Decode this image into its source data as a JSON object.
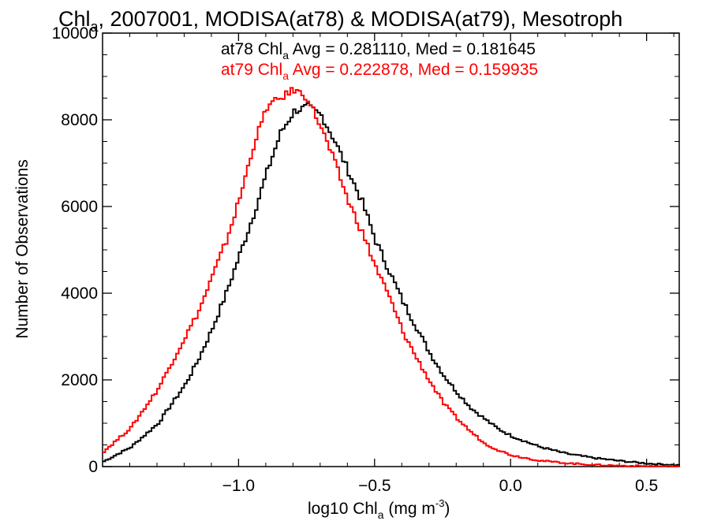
{
  "chart_data": {
    "type": "line",
    "title": {
      "prefix": "Chl",
      "sub": "a",
      "rest": ", 2007001, MODISA(at78) & MODISA(at79), Mesotroph"
    },
    "xlabel": {
      "prefix": "log10 Chl",
      "sub": "a",
      "mid": " (mg m",
      "sup": "-3",
      "end": ")"
    },
    "ylabel": "Number of Observations",
    "xlim": [
      -1.5,
      0.62
    ],
    "ylim": [
      0,
      10000
    ],
    "x_ticks": [
      {
        "value": -1.0,
        "label": "−1.0"
      },
      {
        "value": -0.5,
        "label": "−0.5"
      },
      {
        "value": 0.0,
        "label": "0.0"
      },
      {
        "value": 0.5,
        "label": "0.5"
      }
    ],
    "y_ticks": [
      {
        "value": 0,
        "label": "0"
      },
      {
        "value": 2000,
        "label": "2000"
      },
      {
        "value": 4000,
        "label": "4000"
      },
      {
        "value": 6000,
        "label": "6000"
      },
      {
        "value": 8000,
        "label": "8000"
      },
      {
        "value": 10000,
        "label": "10000"
      }
    ],
    "grid": false,
    "series": [
      {
        "name": "at78",
        "color": "#000000",
        "stats": {
          "prefix": "at78 Chl",
          "sub": "a",
          "rest": " Avg = 0.281110, Med = 0.181645"
        },
        "x": [
          -1.5,
          -1.4,
          -1.3,
          -1.2,
          -1.15,
          -1.1,
          -1.05,
          -1.0,
          -0.95,
          -0.9,
          -0.85,
          -0.8,
          -0.75,
          -0.7,
          -0.65,
          -0.6,
          -0.55,
          -0.5,
          -0.45,
          -0.4,
          -0.35,
          -0.3,
          -0.25,
          -0.2,
          -0.15,
          -0.1,
          -0.05,
          0.0,
          0.1,
          0.2,
          0.3,
          0.4,
          0.5,
          0.62
        ],
        "y": [
          120,
          450,
          1000,
          1900,
          2500,
          3200,
          4000,
          4900,
          5800,
          6800,
          7700,
          8200,
          8300,
          8100,
          7500,
          6800,
          6100,
          5200,
          4500,
          3800,
          3200,
          2600,
          2100,
          1700,
          1350,
          1100,
          870,
          700,
          460,
          300,
          200,
          130,
          70,
          30
        ]
      },
      {
        "name": "at79",
        "color": "#ff0000",
        "stats": {
          "prefix": "at79 Chl",
          "sub": "a",
          "rest": " Avg = 0.222878, Med = 0.159935"
        },
        "x": [
          -1.5,
          -1.4,
          -1.3,
          -1.2,
          -1.15,
          -1.1,
          -1.05,
          -1.0,
          -0.95,
          -0.9,
          -0.85,
          -0.8,
          -0.75,
          -0.7,
          -0.65,
          -0.6,
          -0.55,
          -0.5,
          -0.45,
          -0.4,
          -0.35,
          -0.3,
          -0.25,
          -0.2,
          -0.15,
          -0.1,
          -0.05,
          0.0,
          0.1,
          0.2,
          0.3,
          0.4,
          0.5,
          0.62
        ],
        "y": [
          350,
          900,
          1800,
          3000,
          3600,
          4400,
          5200,
          6200,
          7400,
          8300,
          8500,
          8700,
          8500,
          7800,
          7000,
          6100,
          5400,
          4600,
          3900,
          3100,
          2500,
          1950,
          1450,
          1100,
          800,
          530,
          380,
          260,
          140,
          80,
          40,
          20,
          10,
          5
        ]
      }
    ]
  }
}
